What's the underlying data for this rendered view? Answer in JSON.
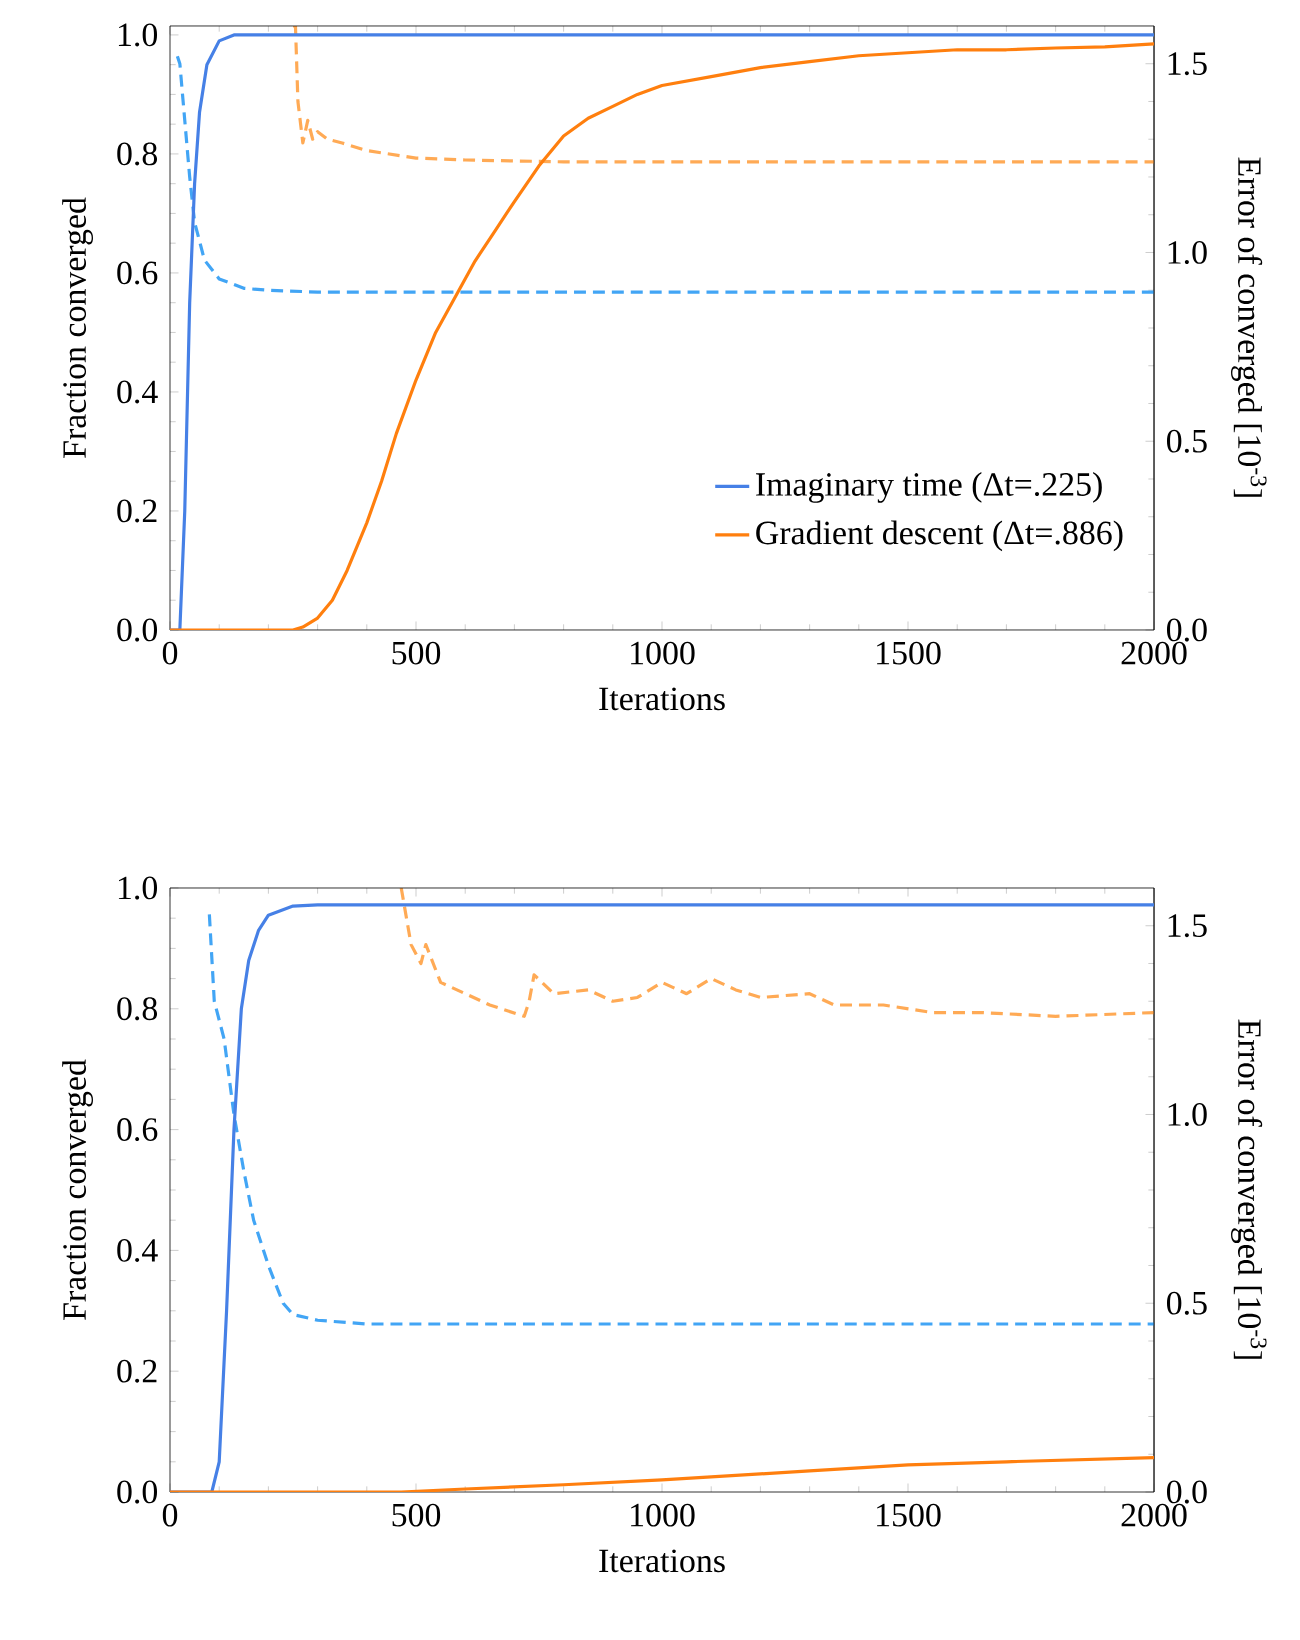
{
  "chart_data": [
    {
      "type": "line",
      "xlabel": "Iterations",
      "ylabel": "Fraction converged",
      "y2label": "Error of converged  [10$^{-3}$]",
      "xlim": [
        0,
        2000
      ],
      "ylim": [
        0,
        1.015
      ],
      "y2lim": [
        0,
        1.6
      ],
      "xticks": [
        0,
        500,
        1000,
        1500,
        2000
      ],
      "yticks": [
        {
          "value": 0,
          "label": "0.0"
        },
        {
          "value": 0.2,
          "label": "0.2"
        },
        {
          "value": 0.4,
          "label": "0.4"
        },
        {
          "value": 0.6,
          "label": "0.6"
        },
        {
          "value": 0.8,
          "label": "0.8"
        },
        {
          "value": 1,
          "label": "1.0"
        }
      ],
      "y2ticks": [
        {
          "value": 0,
          "label": "0.0"
        },
        {
          "value": 0.5,
          "label": "0.5"
        },
        {
          "value": 1,
          "label": "1.0"
        },
        {
          "value": 1.5,
          "label": "1.5"
        }
      ],
      "legend": "bottom right",
      "grid": false,
      "series": [
        {
          "name": "Imaginary time (Δt=.225)",
          "color": "#4680e6",
          "line_style": "solid",
          "x": [
            0,
            20,
            30,
            40,
            50,
            60,
            75,
            100,
            130,
            2000
          ],
          "values": [
            0,
            0,
            0.2,
            0.55,
            0.75,
            0.87,
            0.95,
            0.99,
            1.0,
            1.0
          ]
        },
        {
          "name": "Gradient descent (Δt=.886)",
          "color": "#ff7f0e",
          "line_style": "solid",
          "x": [
            0,
            250,
            270,
            300,
            330,
            360,
            400,
            430,
            460,
            500,
            540,
            580,
            620,
            660,
            700,
            750,
            800,
            850,
            900,
            950,
            1000,
            1100,
            1200,
            1300,
            1400,
            1500,
            1600,
            1700,
            1800,
            1900,
            2000
          ],
          "values": [
            0,
            0,
            0.005,
            0.02,
            0.05,
            0.1,
            0.18,
            0.25,
            0.33,
            0.42,
            0.5,
            0.56,
            0.62,
            0.67,
            0.72,
            0.78,
            0.83,
            0.86,
            0.88,
            0.9,
            0.915,
            0.93,
            0.945,
            0.955,
            0.965,
            0.97,
            0.975,
            0.975,
            0.978,
            0.98,
            0.985
          ]
        },
        {
          "color": "#42a5f5",
          "line_style": "dashed",
          "axis": "y2",
          "x": [
            15,
            20,
            30,
            40,
            50,
            70,
            100,
            150,
            200,
            300,
            2000
          ],
          "values": [
            1.52,
            1.5,
            1.35,
            1.2,
            1.08,
            0.98,
            0.93,
            0.905,
            0.9,
            0.895,
            0.895
          ]
        },
        {
          "color": "#ffaa55",
          "line_style": "dashed",
          "axis": "y2",
          "x": [
            250,
            255,
            260,
            270,
            280,
            290,
            300,
            320,
            350,
            400,
            450,
            500,
            600,
            800,
            2000
          ],
          "values": [
            1.6,
            1.6,
            1.4,
            1.29,
            1.35,
            1.3,
            1.32,
            1.3,
            1.29,
            1.27,
            1.26,
            1.25,
            1.245,
            1.24,
            1.24
          ]
        }
      ]
    },
    {
      "type": "line",
      "xlabel": "Iterations",
      "ylabel": "Fraction converged",
      "y2label": "Error of converged  [10$^{-3}$]",
      "xlim": [
        0,
        2000
      ],
      "ylim": [
        0,
        1
      ],
      "y2lim": [
        0,
        1.6
      ],
      "xticks": [
        0,
        500,
        1000,
        1500,
        2000
      ],
      "yticks": [
        {
          "value": 0,
          "label": "0.0"
        },
        {
          "value": 0.2,
          "label": "0.2"
        },
        {
          "value": 0.4,
          "label": "0.4"
        },
        {
          "value": 0.6,
          "label": "0.6"
        },
        {
          "value": 0.8,
          "label": "0.8"
        },
        {
          "value": 1,
          "label": "1.0"
        }
      ],
      "y2ticks": [
        {
          "value": 0,
          "label": "0.0"
        },
        {
          "value": 0.5,
          "label": "0.5"
        },
        {
          "value": 1,
          "label": "1.0"
        },
        {
          "value": 1.5,
          "label": "1.5"
        }
      ],
      "legend": false,
      "grid": false,
      "series": [
        {
          "color": "#4680e6",
          "line_style": "solid",
          "x": [
            0,
            85,
            100,
            115,
            130,
            145,
            160,
            180,
            200,
            250,
            300,
            2000
          ],
          "values": [
            0,
            0,
            0.05,
            0.3,
            0.6,
            0.8,
            0.88,
            0.93,
            0.955,
            0.97,
            0.972,
            0.972
          ]
        },
        {
          "color": "#ff7f0e",
          "line_style": "solid",
          "x": [
            0,
            470,
            600,
            800,
            1000,
            1200,
            1300,
            1500,
            1700,
            2000
          ],
          "values": [
            0,
            0,
            0.005,
            0.012,
            0.02,
            0.03,
            0.035,
            0.045,
            0.05,
            0.057
          ]
        },
        {
          "color": "#42a5f5",
          "line_style": "dashed",
          "axis": "y2",
          "x": [
            80,
            90,
            110,
            130,
            150,
            170,
            200,
            230,
            250,
            300,
            400,
            2000
          ],
          "values": [
            1.53,
            1.3,
            1.2,
            1.0,
            0.85,
            0.72,
            0.6,
            0.5,
            0.47,
            0.455,
            0.445,
            0.445
          ]
        },
        {
          "color": "#ffaa55",
          "line_style": "dashed",
          "axis": "y2",
          "x": [
            470,
            490,
            510,
            520,
            550,
            600,
            650,
            720,
            730,
            740,
            780,
            850,
            900,
            950,
            1000,
            1050,
            1100,
            1150,
            1200,
            1300,
            1350,
            1450,
            1550,
            1650,
            1800,
            2000
          ],
          "values": [
            1.6,
            1.45,
            1.4,
            1.45,
            1.35,
            1.32,
            1.29,
            1.26,
            1.3,
            1.37,
            1.32,
            1.33,
            1.3,
            1.31,
            1.35,
            1.32,
            1.36,
            1.33,
            1.31,
            1.32,
            1.29,
            1.29,
            1.27,
            1.27,
            1.26,
            1.27
          ]
        }
      ]
    }
  ]
}
